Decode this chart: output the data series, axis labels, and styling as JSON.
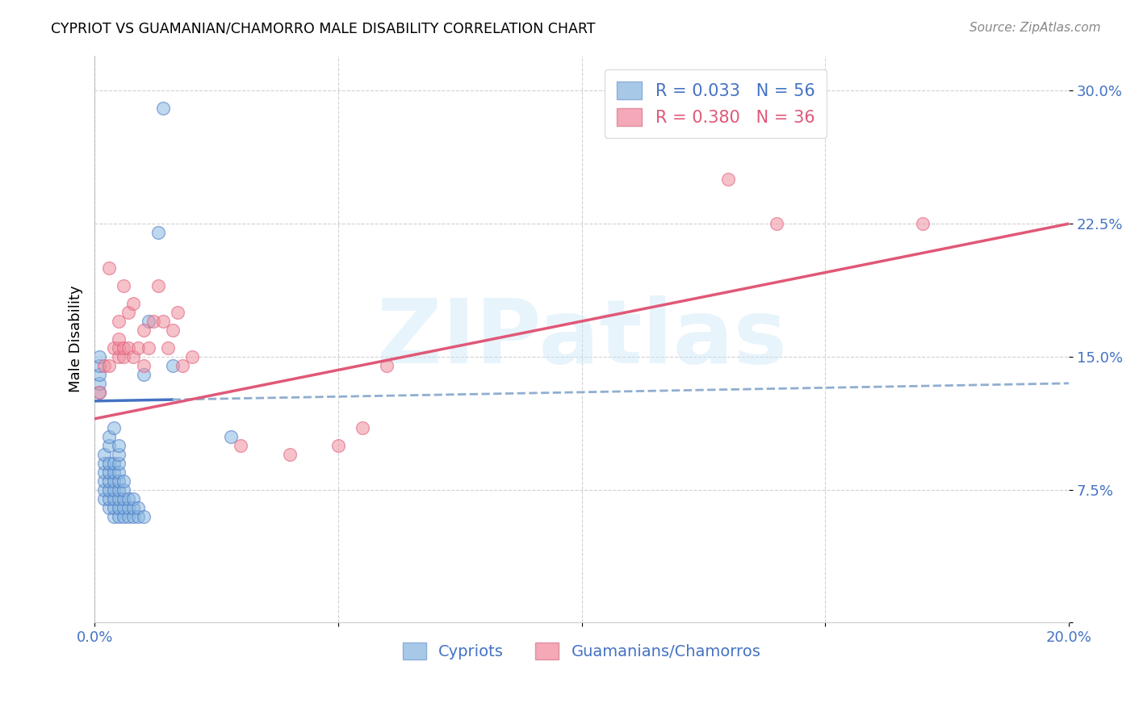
{
  "title": "CYPRIOT VS GUAMANIAN/CHAMORRO MALE DISABILITY CORRELATION CHART",
  "source": "Source: ZipAtlas.com",
  "ylabel": "Male Disability",
  "xlim": [
    0.0,
    0.2
  ],
  "ylim": [
    0.0,
    0.32
  ],
  "xticks": [
    0.0,
    0.05,
    0.1,
    0.15,
    0.2
  ],
  "xticklabels": [
    "0.0%",
    "",
    "",
    "",
    "20.0%"
  ],
  "yticks": [
    0.0,
    0.075,
    0.15,
    0.225,
    0.3
  ],
  "yticklabels": [
    "",
    "7.5%",
    "15.0%",
    "22.5%",
    "30.0%"
  ],
  "watermark": "ZIPatlas",
  "legend_entries": [
    {
      "label": "R = 0.033   N = 56",
      "color": "#a8c8e8"
    },
    {
      "label": "R = 0.380   N = 36",
      "color": "#f4a8b8"
    }
  ],
  "legend_labels_bottom": [
    "Cypriots",
    "Guamanians/Chamorros"
  ],
  "blue_scatter_color": "#8ab8e0",
  "pink_scatter_color": "#f090a0",
  "blue_line_color": "#4472c4",
  "pink_line_color": "#e05878",
  "blue_trendline_dashed_color": "#90aed0",
  "cypriot_x": [
    0.001,
    0.001,
    0.001,
    0.001,
    0.001,
    0.002,
    0.002,
    0.002,
    0.002,
    0.002,
    0.002,
    0.003,
    0.003,
    0.003,
    0.003,
    0.003,
    0.003,
    0.003,
    0.003,
    0.004,
    0.004,
    0.004,
    0.004,
    0.004,
    0.004,
    0.004,
    0.004,
    0.005,
    0.005,
    0.005,
    0.005,
    0.005,
    0.005,
    0.005,
    0.005,
    0.005,
    0.006,
    0.006,
    0.006,
    0.006,
    0.006,
    0.007,
    0.007,
    0.007,
    0.008,
    0.008,
    0.008,
    0.009,
    0.009,
    0.01,
    0.01,
    0.011,
    0.013,
    0.014,
    0.016,
    0.028
  ],
  "cypriot_y": [
    0.13,
    0.135,
    0.14,
    0.145,
    0.15,
    0.07,
    0.075,
    0.08,
    0.085,
    0.09,
    0.095,
    0.065,
    0.07,
    0.075,
    0.08,
    0.085,
    0.09,
    0.1,
    0.105,
    0.06,
    0.065,
    0.07,
    0.075,
    0.08,
    0.085,
    0.09,
    0.11,
    0.06,
    0.065,
    0.07,
    0.075,
    0.08,
    0.085,
    0.09,
    0.095,
    0.1,
    0.06,
    0.065,
    0.07,
    0.075,
    0.08,
    0.06,
    0.065,
    0.07,
    0.06,
    0.065,
    0.07,
    0.06,
    0.065,
    0.06,
    0.14,
    0.17,
    0.22,
    0.29,
    0.145,
    0.105
  ],
  "guam_x": [
    0.001,
    0.002,
    0.003,
    0.003,
    0.004,
    0.005,
    0.005,
    0.005,
    0.005,
    0.006,
    0.006,
    0.006,
    0.007,
    0.007,
    0.008,
    0.008,
    0.009,
    0.01,
    0.01,
    0.011,
    0.012,
    0.013,
    0.014,
    0.015,
    0.016,
    0.017,
    0.018,
    0.02,
    0.03,
    0.04,
    0.05,
    0.055,
    0.06,
    0.13,
    0.14,
    0.17
  ],
  "guam_y": [
    0.13,
    0.145,
    0.145,
    0.2,
    0.155,
    0.15,
    0.155,
    0.16,
    0.17,
    0.15,
    0.155,
    0.19,
    0.155,
    0.175,
    0.15,
    0.18,
    0.155,
    0.145,
    0.165,
    0.155,
    0.17,
    0.19,
    0.17,
    0.155,
    0.165,
    0.175,
    0.145,
    0.15,
    0.1,
    0.095,
    0.1,
    0.11,
    0.145,
    0.25,
    0.225,
    0.225
  ]
}
